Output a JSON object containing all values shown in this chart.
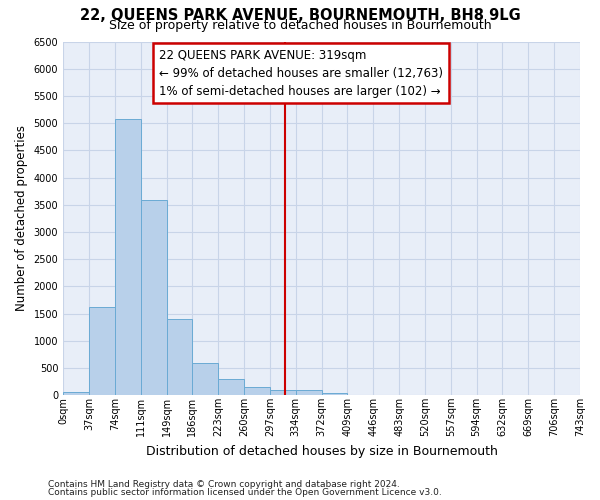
{
  "title": "22, QUEENS PARK AVENUE, BOURNEMOUTH, BH8 9LG",
  "subtitle": "Size of property relative to detached houses in Bournemouth",
  "xlabel": "Distribution of detached houses by size in Bournemouth",
  "ylabel": "Number of detached properties",
  "footnote1": "Contains HM Land Registry data © Crown copyright and database right 2024.",
  "footnote2": "Contains public sector information licensed under the Open Government Licence v3.0.",
  "bar_values": [
    55,
    1630,
    5080,
    3580,
    1400,
    590,
    300,
    155,
    100,
    90,
    45,
    5,
    0,
    0,
    0,
    0,
    0,
    0,
    0,
    0
  ],
  "bar_labels": [
    "0sqm",
    "37sqm",
    "74sqm",
    "111sqm",
    "149sqm",
    "186sqm",
    "223sqm",
    "260sqm",
    "297sqm",
    "334sqm",
    "372sqm",
    "409sqm",
    "446sqm",
    "483sqm",
    "520sqm",
    "557sqm",
    "594sqm",
    "632sqm",
    "669sqm",
    "706sqm",
    "743sqm"
  ],
  "bar_color": "#b8d0ea",
  "bar_edge_color": "#6aaad4",
  "vline_color": "#cc0000",
  "annotation_line1": "22 QUEENS PARK AVENUE: 319sqm",
  "annotation_line2": "← 99% of detached houses are smaller (12,763)",
  "annotation_line3": "1% of semi-detached houses are larger (102) →",
  "annotation_box_color": "#cc0000",
  "annotation_box_fill": "#ffffff",
  "grid_color": "#c8d4e8",
  "bg_color": "#e8eef8",
  "ylim": [
    0,
    6500
  ],
  "yticks": [
    0,
    500,
    1000,
    1500,
    2000,
    2500,
    3000,
    3500,
    4000,
    4500,
    5000,
    5500,
    6000,
    6500
  ],
  "title_fontsize": 10.5,
  "subtitle_fontsize": 9,
  "xlabel_fontsize": 9,
  "ylabel_fontsize": 8.5,
  "tick_fontsize": 7,
  "annotation_fontsize": 8.5,
  "footnote_fontsize": 6.5
}
